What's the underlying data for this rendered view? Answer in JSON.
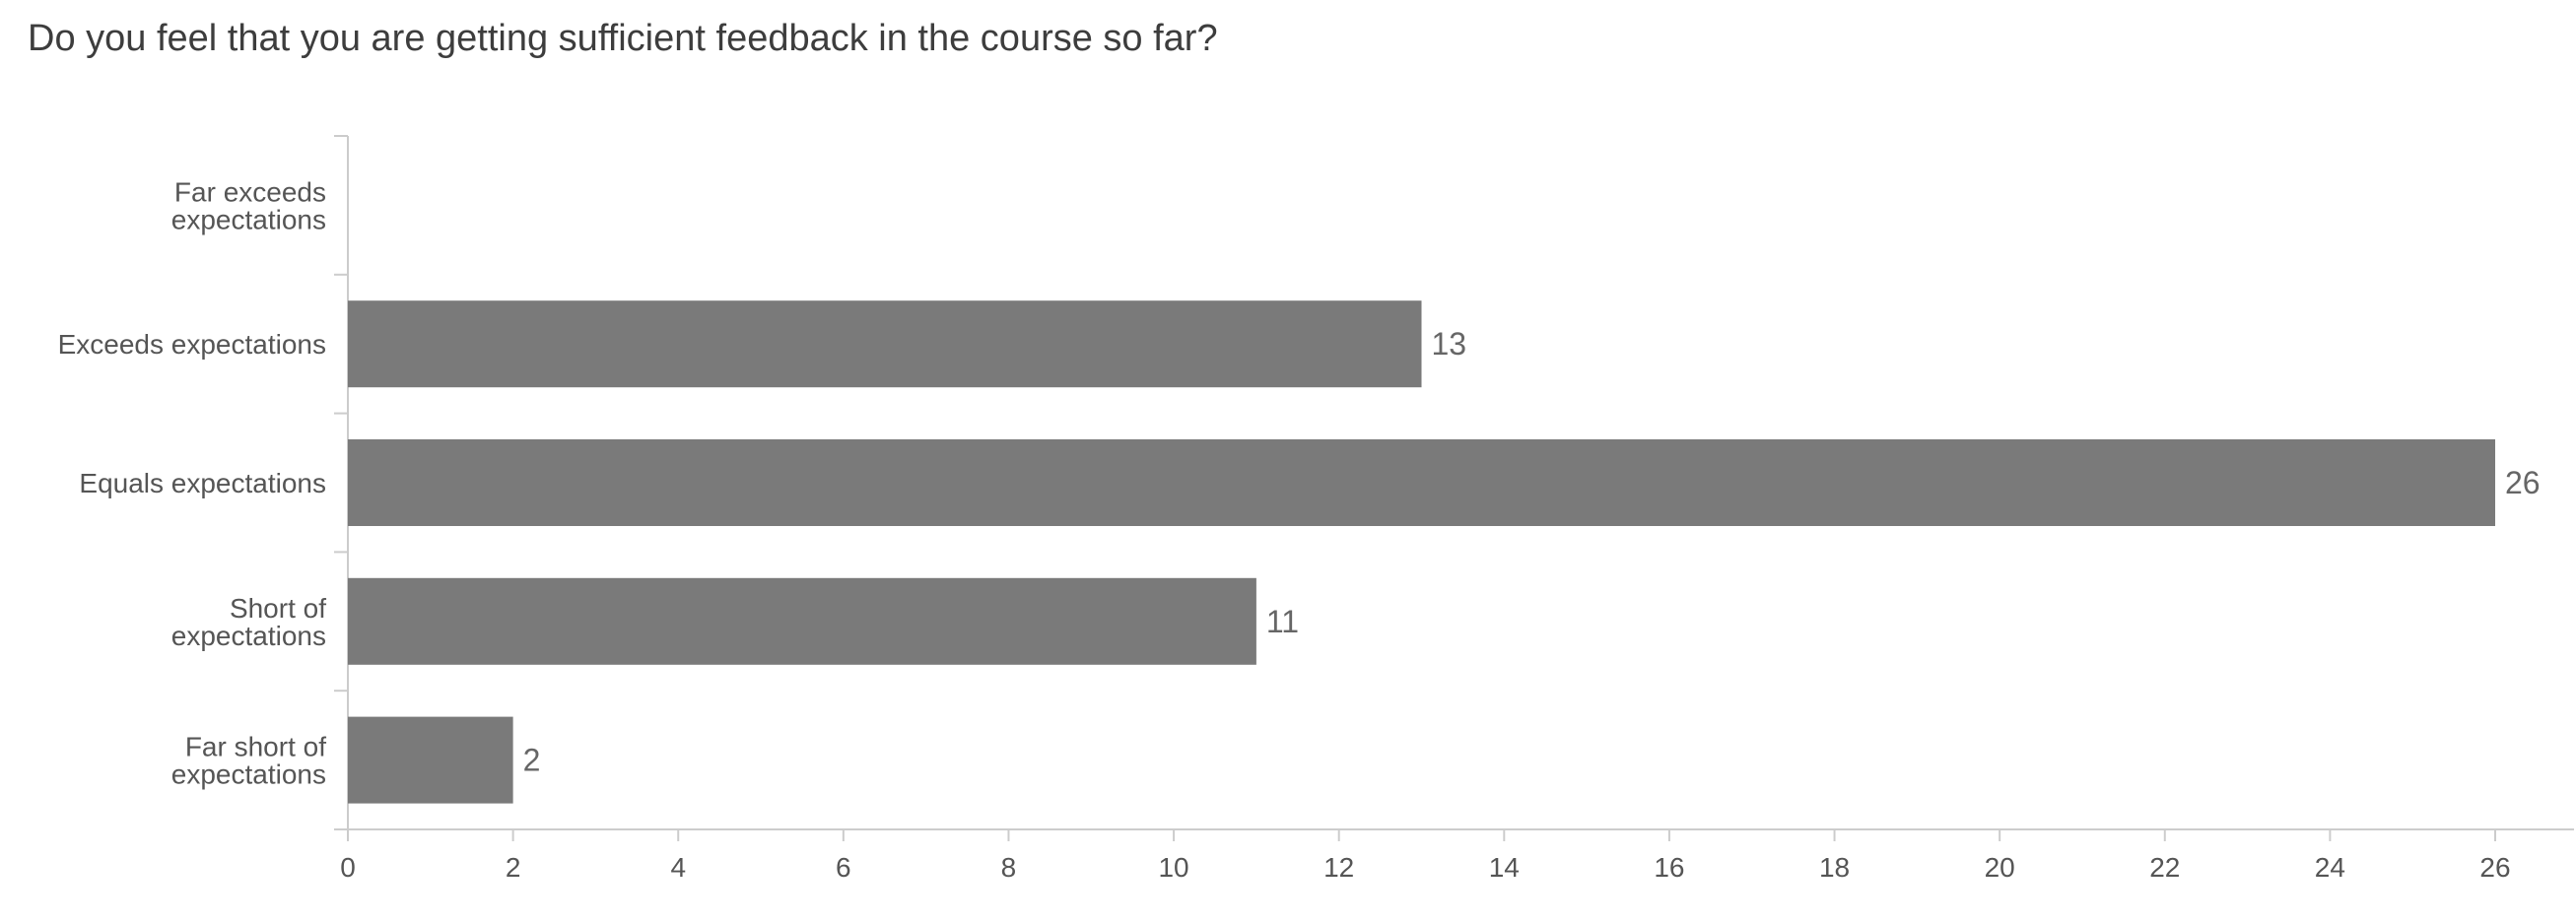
{
  "chart_data": {
    "type": "bar",
    "orientation": "horizontal",
    "title": "Do you feel that you are getting sufficient feedback in the course so far?",
    "categories": [
      "Far exceeds expectations",
      "Exceeds expectations",
      "Equals expectations",
      "Short of expectations",
      "Far short of expectations"
    ],
    "category_label_lines": [
      [
        "Far exceeds",
        "expectations"
      ],
      [
        "Exceeds expectations"
      ],
      [
        "Equals expectations"
      ],
      [
        "Short of",
        "expectations"
      ],
      [
        "Far short of",
        "expectations"
      ]
    ],
    "values": [
      0,
      13,
      26,
      11,
      2
    ],
    "data_labels": [
      "",
      "13",
      "26",
      "11",
      "2"
    ],
    "xlim": [
      0,
      27
    ],
    "x_ticks": [
      0,
      2,
      4,
      6,
      8,
      10,
      12,
      14,
      16,
      18,
      20,
      22,
      24,
      26
    ],
    "xlabel": "",
    "ylabel": "",
    "grid": false,
    "legend": "none",
    "colors": {
      "bar": "#7a7a7a",
      "axis": "#cccccc",
      "text": "#555555",
      "title": "#3d3d3d",
      "data_label": "#666666"
    }
  }
}
